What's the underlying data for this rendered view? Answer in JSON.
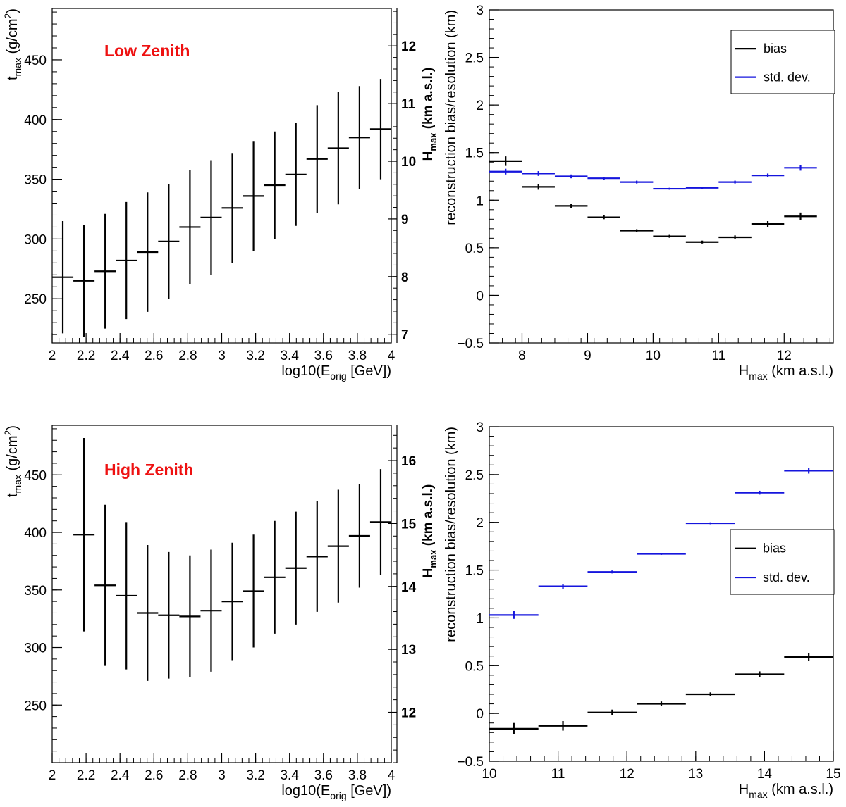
{
  "chart_data": [
    {
      "id": "low-tmax",
      "type": "scatter",
      "style": "errorbar",
      "annotation": "Low Zenith",
      "annotation_color": "#ee1111",
      "xlabel": "log10(E",
      "xlabel_sub": "orig",
      "xlabel_tail": " [GeV])",
      "ylabel": "t",
      "ylabel_sub": "max",
      "ylabel_tail": " (g/cm",
      "ylabel_sup": "2",
      "ylabel_end": ")",
      "xlim": [
        2,
        4
      ],
      "ylim": [
        213,
        493
      ],
      "xticks": [
        2,
        2.2,
        2.4,
        2.6,
        2.8,
        3,
        3.2,
        3.4,
        3.6,
        3.8,
        4
      ],
      "xtick_labels": [
        "2",
        "2.2",
        "2.4",
        "2.6",
        "2.8",
        "3",
        "3.2",
        "3.4",
        "3.6",
        "3.8",
        "4"
      ],
      "yticks": [
        250,
        300,
        350,
        400,
        450
      ],
      "ytick_labels": [
        "250",
        "300",
        "350",
        "400",
        "450"
      ],
      "right_axis": {
        "label": "H",
        "label_sub": "max",
        "label_tail": " (km a.s.l.)",
        "range": [
          6.85,
          12.65
        ],
        "ticks": [
          7,
          8,
          9,
          10,
          11,
          12
        ],
        "tick_labels": [
          "7",
          "8",
          "9",
          "10",
          "11",
          "12"
        ]
      },
      "series": [
        {
          "name": "tmax",
          "color": "#000000",
          "x": [
            2.0625,
            2.1875,
            2.3125,
            2.4375,
            2.5625,
            2.6875,
            2.8125,
            2.9375,
            3.0625,
            3.1875,
            3.3125,
            3.4375,
            3.5625,
            3.6875,
            3.8125,
            3.9375
          ],
          "xerr": 0.0625,
          "y": [
            268,
            265,
            273,
            282,
            289,
            298,
            310,
            318,
            326,
            336,
            345,
            354,
            367,
            376,
            385,
            392
          ],
          "yerr": [
            47,
            47,
            48,
            49,
            50,
            48,
            48,
            48,
            46,
            46,
            45,
            43,
            45,
            47,
            43,
            42
          ]
        }
      ]
    },
    {
      "id": "low-bias",
      "type": "scatter",
      "style": "errorbar",
      "xlabel": "H",
      "xlabel_sub": "max",
      "xlabel_tail": " (km a.s.l.)",
      "ylabel": "reconstruction bias/resolution (km)",
      "xlim": [
        7.5,
        12.75
      ],
      "ylim": [
        -0.5,
        3
      ],
      "xticks": [
        8,
        9,
        10,
        11,
        12
      ],
      "xtick_labels": [
        "8",
        "9",
        "10",
        "11",
        "12"
      ],
      "yticks": [
        -0.5,
        0,
        0.5,
        1,
        1.5,
        2,
        2.5,
        3
      ],
      "ytick_labels": [
        "−0.5",
        "0",
        "0.5",
        "1",
        "1.5",
        "2",
        "2.5",
        "3"
      ],
      "legend": {
        "position": "top-right",
        "entries": [
          "bias",
          "std. dev."
        ]
      },
      "series": [
        {
          "name": "bias",
          "color": "#000000",
          "x": [
            7.75,
            8.25,
            8.75,
            9.25,
            9.75,
            10.25,
            10.75,
            11.25,
            11.75,
            12.25
          ],
          "xerr": 0.25,
          "y": [
            1.41,
            1.14,
            0.94,
            0.82,
            0.68,
            0.62,
            0.56,
            0.61,
            0.75,
            0.83
          ],
          "yerr": [
            0.05,
            0.03,
            0.025,
            0.02,
            0.015,
            0.015,
            0.015,
            0.02,
            0.03,
            0.04
          ]
        },
        {
          "name": "std. dev.",
          "color": "#1515dd",
          "x": [
            7.75,
            8.25,
            8.75,
            9.25,
            9.75,
            10.25,
            10.75,
            11.25,
            11.75,
            12.25
          ],
          "xerr": 0.25,
          "y": [
            1.3,
            1.28,
            1.25,
            1.23,
            1.19,
            1.12,
            1.13,
            1.19,
            1.26,
            1.34
          ],
          "yerr": [
            0.03,
            0.025,
            0.02,
            0.015,
            0.015,
            0.01,
            0.01,
            0.015,
            0.02,
            0.03
          ]
        }
      ]
    },
    {
      "id": "high-tmax",
      "type": "scatter",
      "style": "errorbar",
      "annotation": "High Zenith",
      "annotation_color": "#ee1111",
      "xlabel": "log10(E",
      "xlabel_sub": "orig",
      "xlabel_tail": " [GeV])",
      "ylabel": "t",
      "ylabel_sub": "max",
      "ylabel_tail": " (g/cm",
      "ylabel_sup": "2",
      "ylabel_end": ")",
      "xlim": [
        2,
        4
      ],
      "ylim": [
        200,
        493
      ],
      "xticks": [
        2,
        2.2,
        2.4,
        2.6,
        2.8,
        3,
        3.2,
        3.4,
        3.6,
        3.8,
        4
      ],
      "xtick_labels": [
        "2",
        "2.2",
        "2.4",
        "2.6",
        "2.8",
        "3",
        "3.2",
        "3.4",
        "3.6",
        "3.8",
        "4"
      ],
      "yticks": [
        250,
        300,
        350,
        400,
        450
      ],
      "ytick_labels": [
        "250",
        "300",
        "350",
        "400",
        "450"
      ],
      "right_axis": {
        "label": "H",
        "label_sub": "max",
        "label_tail": " (km a.s.l.)",
        "range": [
          11.2,
          16.56
        ],
        "ticks": [
          12,
          13,
          14,
          15,
          16
        ],
        "tick_labels": [
          "12",
          "13",
          "14",
          "15",
          "16"
        ]
      },
      "series": [
        {
          "name": "tmax",
          "color": "#000000",
          "x": [
            2.1875,
            2.3125,
            2.4375,
            2.5625,
            2.6875,
            2.8125,
            2.9375,
            3.0625,
            3.1875,
            3.3125,
            3.4375,
            3.5625,
            3.6875,
            3.8125,
            3.9375
          ],
          "xerr": 0.0625,
          "y": [
            398,
            354,
            345,
            330,
            328,
            327,
            332,
            340,
            349,
            361,
            369,
            379,
            388,
            397,
            409
          ],
          "yerr": [
            84,
            70,
            64,
            59,
            55,
            53,
            53,
            51,
            49,
            49,
            49,
            48,
            49,
            45,
            46
          ]
        }
      ]
    },
    {
      "id": "high-bias",
      "type": "scatter",
      "style": "errorbar",
      "xlabel": "H",
      "xlabel_sub": "max",
      "xlabel_tail": " (km a.s.l.)",
      "ylabel": "reconstruction bias/resolution (km)",
      "xlim": [
        10,
        15
      ],
      "ylim": [
        -0.5,
        3
      ],
      "xticks": [
        10,
        11,
        12,
        13,
        14,
        15
      ],
      "xtick_labels": [
        "10",
        "11",
        "12",
        "13",
        "14",
        "15"
      ],
      "yticks": [
        -0.5,
        0,
        0.5,
        1,
        1.5,
        2,
        2.5,
        3
      ],
      "ytick_labels": [
        "−0.5",
        "0",
        "0.5",
        "1",
        "1.5",
        "2",
        "2.5",
        "3"
      ],
      "legend": {
        "position": "center-right",
        "entries": [
          "bias",
          "std. dev."
        ]
      },
      "series": [
        {
          "name": "bias",
          "color": "#000000",
          "x": [
            10.357,
            11.071,
            11.786,
            12.5,
            13.214,
            13.929,
            14.643
          ],
          "xerr": 0.357,
          "y": [
            -0.16,
            -0.13,
            0.01,
            0.1,
            0.2,
            0.41,
            0.59
          ],
          "yerr": [
            0.06,
            0.05,
            0.03,
            0.025,
            0.02,
            0.03,
            0.04
          ]
        },
        {
          "name": "std. dev.",
          "color": "#1515dd",
          "x": [
            10.357,
            11.071,
            11.786,
            12.5,
            13.214,
            13.929,
            14.643
          ],
          "xerr": 0.357,
          "y": [
            1.03,
            1.33,
            1.48,
            1.67,
            1.99,
            2.31,
            2.54
          ],
          "yerr": [
            0.04,
            0.025,
            0.015,
            0.01,
            0.01,
            0.02,
            0.03
          ]
        }
      ]
    }
  ]
}
